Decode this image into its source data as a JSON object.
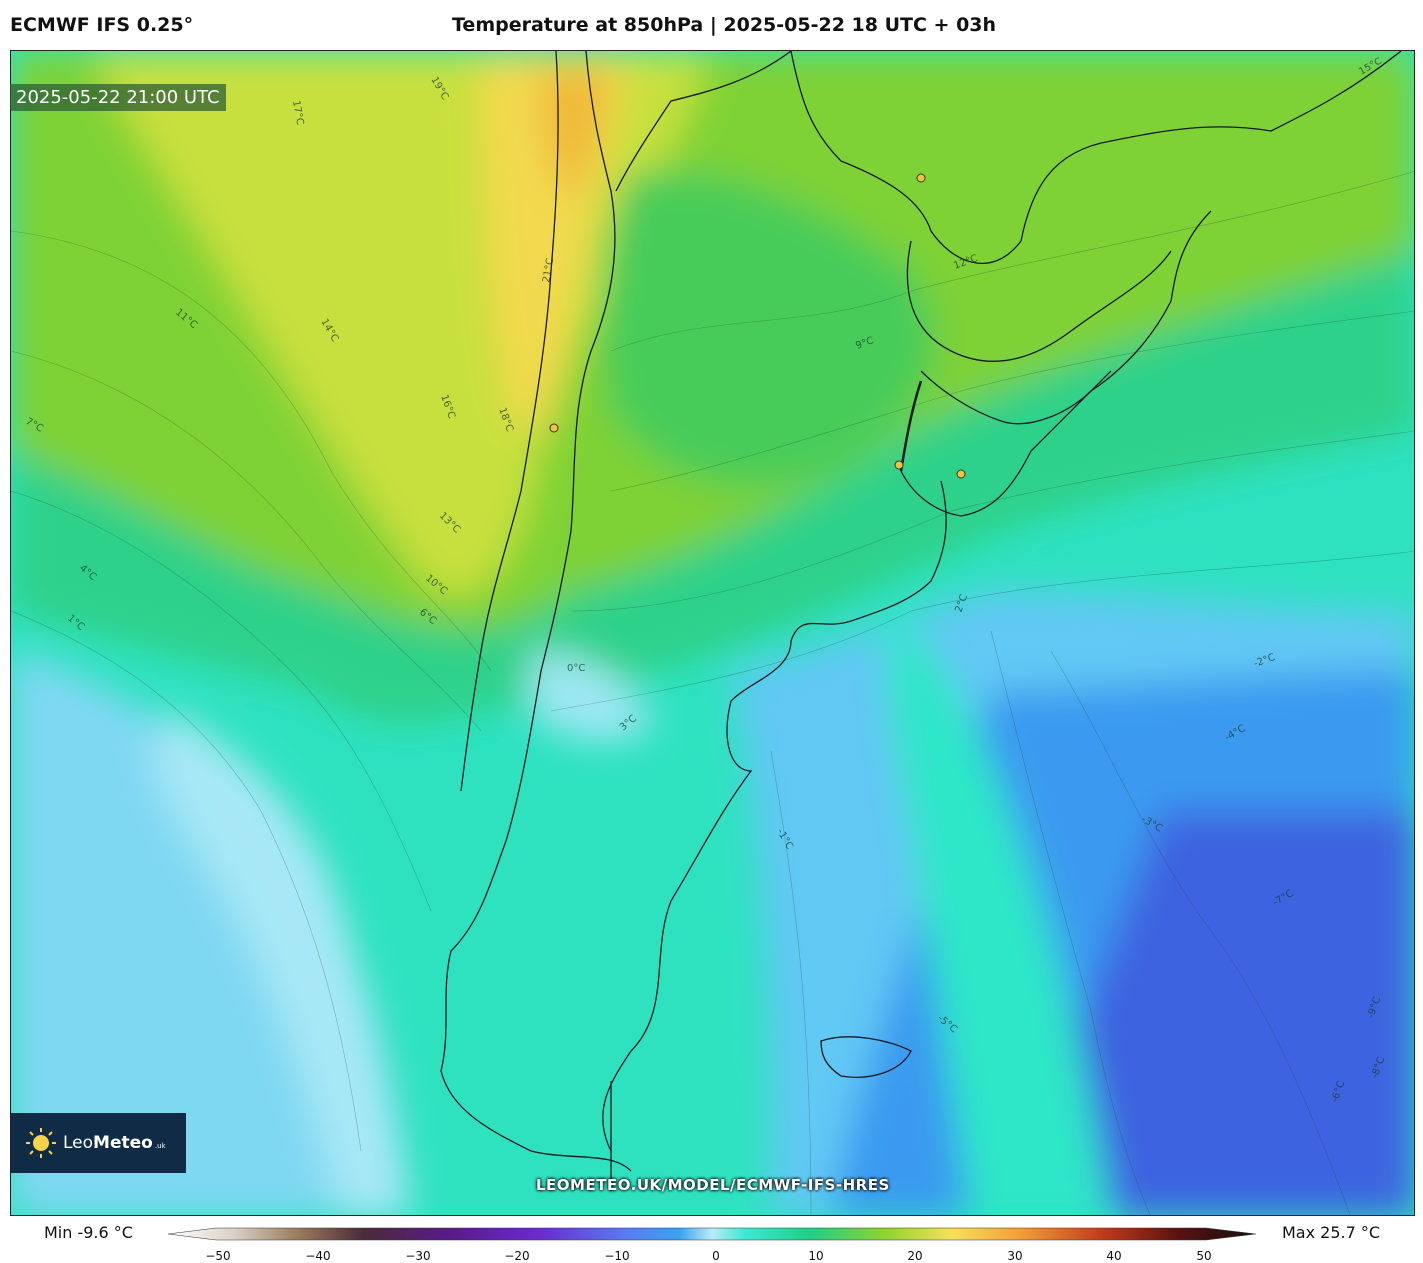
{
  "header": {
    "model_title": "ECMWF IFS 0.25°",
    "chart_title": "Temperature at 850hPa | 2025-05-22 18 UTC + 03h"
  },
  "map": {
    "valid_time": "2025-05-22 21:00 UTC",
    "watermark": "LEOMETEO.UK/MODEL/ECMWF-IFS-HRES",
    "contour_labels": [
      {
        "text": "17°C"
      },
      {
        "text": "19°C"
      },
      {
        "text": "14°C"
      },
      {
        "text": "16°C"
      },
      {
        "text": "18°C"
      },
      {
        "text": "13°C"
      },
      {
        "text": "11°C"
      },
      {
        "text": "10°C"
      },
      {
        "text": "9°C"
      },
      {
        "text": "7°C"
      },
      {
        "text": "6°C"
      },
      {
        "text": "4°C"
      },
      {
        "text": "2°C"
      },
      {
        "text": "1°C"
      },
      {
        "text": "0°C"
      },
      {
        "text": "-2°C"
      },
      {
        "text": "-3°C"
      },
      {
        "text": "-4°C"
      },
      {
        "text": "-5°C"
      },
      {
        "text": "-7°C"
      },
      {
        "text": "-8°C"
      },
      {
        "text": "-9°C"
      },
      {
        "text": "3°C"
      },
      {
        "text": "15°C"
      },
      {
        "text": "12°C"
      },
      {
        "text": "-6°C"
      },
      {
        "text": "-1°C"
      },
      {
        "text": "21°C"
      }
    ],
    "colors": {
      "warm": "#f2d54a",
      "mild": "#8fd12e",
      "cool": "#1fcf8a",
      "cold": "#3fe8d2",
      "colder": "#7fd8f2",
      "coldest": "#3b8ff0",
      "deep": "#3a5fe0"
    }
  },
  "logo": {
    "brand_light": "Leo",
    "brand_bold": "Meteo",
    "suffix": ".uk"
  },
  "colorbar": {
    "min_label": "Min -9.6 °C",
    "max_label": "Max 25.7 °C",
    "ticks": [
      "−50",
      "−40",
      "−30",
      "−20",
      "−10",
      "0",
      "10",
      "20",
      "30",
      "40",
      "50"
    ],
    "range": [
      -50,
      50
    ]
  }
}
